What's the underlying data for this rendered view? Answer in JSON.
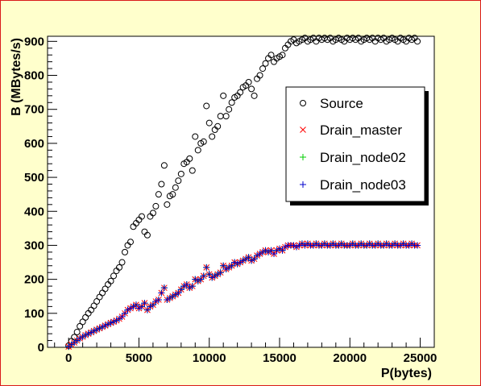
{
  "chart_data": {
    "type": "scatter",
    "xlabel": "P(bytes)",
    "ylabel": "B (MBytes/s)",
    "xlim": [
      -1500,
      26000
    ],
    "ylim": [
      0,
      915
    ],
    "xticks": [
      0,
      5000,
      10000,
      15000,
      20000,
      25000
    ],
    "yticks": [
      0,
      100,
      200,
      300,
      400,
      500,
      600,
      700,
      800,
      900
    ],
    "grid": false,
    "legend_position": "right",
    "colors": {
      "source": "#000000",
      "drain_master": "#ff0000",
      "drain_node02": "#00cc00",
      "drain_node03": "#0000cc",
      "background": "#ffffcc",
      "plot": "#ffffff",
      "frame": "#d91a1a"
    },
    "series": [
      {
        "name": "Source",
        "marker": "circle",
        "color": "#000000",
        "x": [
          0,
          200,
          400,
          600,
          800,
          1000,
          1200,
          1400,
          1600,
          1800,
          2000,
          2200,
          2400,
          2600,
          2800,
          3000,
          3200,
          3400,
          3600,
          3800,
          4000,
          4200,
          4400,
          4600,
          4800,
          5000,
          5200,
          5400,
          5600,
          5800,
          6000,
          6200,
          6400,
          6600,
          6800,
          7000,
          7200,
          7400,
          7600,
          7800,
          8000,
          8200,
          8400,
          8600,
          8800,
          9000,
          9200,
          9400,
          9600,
          9800,
          10000,
          10200,
          10400,
          10600,
          10800,
          11000,
          11200,
          11400,
          11600,
          11800,
          12000,
          12200,
          12400,
          12600,
          12800,
          13000,
          13200,
          13400,
          13600,
          13800,
          14000,
          14200,
          14400,
          14600,
          14800,
          15000,
          15200,
          15400,
          15600,
          15800,
          16000,
          16200,
          16400,
          16600,
          16800,
          17000,
          17200,
          17400,
          17600,
          17800,
          18000,
          18200,
          18400,
          18600,
          18800,
          19000,
          19200,
          19400,
          19600,
          19800,
          20000,
          20200,
          20400,
          20600,
          20800,
          21000,
          21200,
          21400,
          21600,
          21800,
          22000,
          22200,
          22400,
          22600,
          22800,
          23000,
          23200,
          23400,
          23600,
          23800,
          24000,
          24200,
          24400,
          24600,
          24800
        ],
        "y": [
          5,
          18,
          30,
          45,
          62,
          75,
          88,
          100,
          110,
          122,
          135,
          148,
          160,
          172,
          185,
          195,
          210,
          225,
          235,
          250,
          280,
          300,
          310,
          355,
          365,
          375,
          385,
          340,
          330,
          385,
          395,
          415,
          450,
          480,
          535,
          420,
          445,
          450,
          470,
          490,
          510,
          540,
          545,
          555,
          520,
          620,
          580,
          600,
          605,
          710,
          660,
          620,
          640,
          650,
          680,
          740,
          680,
          700,
          720,
          735,
          740,
          750,
          765,
          770,
          780,
          760,
          740,
          790,
          800,
          820,
          835,
          850,
          860,
          840,
          850,
          855,
          860,
          880,
          890,
          900,
          905,
          895,
          900,
          905,
          910,
          900,
          905,
          910,
          900,
          910,
          905,
          910,
          905,
          910,
          900,
          905,
          910,
          905,
          900,
          910,
          905,
          910,
          905,
          910,
          900,
          905,
          910,
          905,
          910,
          900,
          910,
          905,
          910,
          900,
          905,
          910,
          905,
          900,
          910,
          905,
          900,
          910,
          905,
          910,
          900
        ]
      },
      {
        "name": "Drain_master",
        "marker": "x",
        "color": "#ff0000",
        "x": [
          0,
          200,
          400,
          600,
          800,
          1000,
          1200,
          1400,
          1600,
          1800,
          2000,
          2200,
          2400,
          2600,
          2800,
          3000,
          3200,
          3400,
          3600,
          3800,
          4000,
          4200,
          4400,
          4600,
          4800,
          5000,
          5200,
          5400,
          5600,
          5800,
          6000,
          6200,
          6400,
          6600,
          6800,
          7000,
          7200,
          7400,
          7600,
          7800,
          8000,
          8200,
          8400,
          8600,
          8800,
          9000,
          9200,
          9400,
          9600,
          9800,
          10000,
          10200,
          10400,
          10600,
          10800,
          11000,
          11200,
          11400,
          11600,
          11800,
          12000,
          12200,
          12400,
          12600,
          12800,
          13000,
          13200,
          13400,
          13600,
          13800,
          14000,
          14200,
          14400,
          14600,
          14800,
          15000,
          15200,
          15400,
          15600,
          15800,
          16000,
          16200,
          16400,
          16600,
          16800,
          17000,
          17200,
          17400,
          17600,
          17800,
          18000,
          18200,
          18400,
          18600,
          18800,
          19000,
          19200,
          19400,
          19600,
          19800,
          20000,
          20200,
          20400,
          20600,
          20800,
          21000,
          21200,
          21400,
          21600,
          21800,
          22000,
          22200,
          22400,
          22600,
          22800,
          23000,
          23200,
          23400,
          23600,
          23800,
          24000,
          24200,
          24400,
          24600,
          24800
        ],
        "y": [
          2,
          8,
          14,
          20,
          26,
          31,
          36,
          40,
          44,
          48,
          52,
          56,
          60,
          64,
          68,
          72,
          75,
          79,
          84,
          90,
          100,
          110,
          115,
          120,
          125,
          115,
          120,
          130,
          110,
          120,
          125,
          135,
          140,
          160,
          175,
          140,
          145,
          150,
          155,
          160,
          170,
          180,
          185,
          175,
          180,
          200,
          195,
          200,
          210,
          235,
          215,
          205,
          210,
          215,
          220,
          240,
          230,
          235,
          240,
          250,
          245,
          250,
          255,
          260,
          265,
          255,
          260,
          270,
          275,
          280,
          285,
          280,
          285,
          275,
          285,
          290,
          285,
          295,
          300,
          300,
          300,
          295,
          300,
          305,
          300,
          305,
          300,
          300,
          305,
          300,
          300,
          305,
          300,
          300,
          305,
          300,
          300,
          305,
          300,
          300,
          300,
          305,
          300,
          300,
          305,
          300,
          300,
          305,
          300,
          300,
          305,
          300,
          300,
          305,
          300,
          300,
          305,
          300,
          300,
          305,
          300,
          300,
          305,
          300,
          300
        ]
      },
      {
        "name": "Drain_node02",
        "marker": "plus",
        "color": "#00cc00",
        "x": [
          0,
          200,
          400,
          600,
          800,
          1000,
          1200,
          1400,
          1600,
          1800,
          2000,
          2200,
          2400,
          2600,
          2800,
          3000,
          3200,
          3400,
          3600,
          3800,
          4000,
          4200,
          4400,
          4600,
          4800,
          5000,
          5200,
          5400,
          5600,
          5800,
          6000,
          6200,
          6400,
          6600,
          6800,
          7000,
          7200,
          7400,
          7600,
          7800,
          8000,
          8200,
          8400,
          8600,
          8800,
          9000,
          9200,
          9400,
          9600,
          9800,
          10000,
          10200,
          10400,
          10600,
          10800,
          11000,
          11200,
          11400,
          11600,
          11800,
          12000,
          12200,
          12400,
          12600,
          12800,
          13000,
          13200,
          13400,
          13600,
          13800,
          14000,
          14200,
          14400,
          14600,
          14800,
          15000,
          15200,
          15400,
          15600,
          15800,
          16000,
          16200,
          16400,
          16600,
          16800,
          17000,
          17200,
          17400,
          17600,
          17800,
          18000,
          18200,
          18400,
          18600,
          18800,
          19000,
          19200,
          19400,
          19600,
          19800,
          20000,
          20200,
          20400,
          20600,
          20800,
          21000,
          21200,
          21400,
          21600,
          21800,
          22000,
          22200,
          22400,
          22600,
          22800,
          23000,
          23200,
          23400,
          23600,
          23800,
          24000,
          24200,
          24400,
          24600,
          24800
        ],
        "y": [
          2,
          8,
          14,
          20,
          26,
          31,
          36,
          40,
          44,
          48,
          52,
          56,
          60,
          64,
          68,
          72,
          75,
          79,
          84,
          90,
          100,
          110,
          115,
          120,
          125,
          115,
          120,
          130,
          110,
          120,
          125,
          135,
          140,
          160,
          175,
          140,
          145,
          150,
          155,
          160,
          170,
          180,
          185,
          175,
          180,
          200,
          195,
          200,
          210,
          235,
          215,
          205,
          210,
          215,
          220,
          240,
          230,
          235,
          240,
          250,
          245,
          250,
          255,
          260,
          265,
          255,
          260,
          270,
          275,
          280,
          285,
          280,
          285,
          275,
          285,
          290,
          285,
          295,
          300,
          300,
          300,
          295,
          300,
          305,
          300,
          305,
          300,
          300,
          305,
          300,
          300,
          305,
          300,
          300,
          305,
          300,
          300,
          305,
          300,
          300,
          300,
          305,
          300,
          300,
          305,
          300,
          300,
          305,
          300,
          300,
          305,
          300,
          300,
          305,
          300,
          300,
          305,
          300,
          300,
          305,
          300,
          300,
          305,
          300,
          300
        ]
      },
      {
        "name": "Drain_node03",
        "marker": "plus",
        "color": "#0000cc",
        "x": [
          0,
          200,
          400,
          600,
          800,
          1000,
          1200,
          1400,
          1600,
          1800,
          2000,
          2200,
          2400,
          2600,
          2800,
          3000,
          3200,
          3400,
          3600,
          3800,
          4000,
          4200,
          4400,
          4600,
          4800,
          5000,
          5200,
          5400,
          5600,
          5800,
          6000,
          6200,
          6400,
          6600,
          6800,
          7000,
          7200,
          7400,
          7600,
          7800,
          8000,
          8200,
          8400,
          8600,
          8800,
          9000,
          9200,
          9400,
          9600,
          9800,
          10000,
          10200,
          10400,
          10600,
          10800,
          11000,
          11200,
          11400,
          11600,
          11800,
          12000,
          12200,
          12400,
          12600,
          12800,
          13000,
          13200,
          13400,
          13600,
          13800,
          14000,
          14200,
          14400,
          14600,
          14800,
          15000,
          15200,
          15400,
          15600,
          15800,
          16000,
          16200,
          16400,
          16600,
          16800,
          17000,
          17200,
          17400,
          17600,
          17800,
          18000,
          18200,
          18400,
          18600,
          18800,
          19000,
          19200,
          19400,
          19600,
          19800,
          20000,
          20200,
          20400,
          20600,
          20800,
          21000,
          21200,
          21400,
          21600,
          21800,
          22000,
          22200,
          22400,
          22600,
          22800,
          23000,
          23200,
          23400,
          23600,
          23800,
          24000,
          24200,
          24400,
          24600,
          24800
        ],
        "y": [
          2,
          8,
          14,
          20,
          26,
          31,
          36,
          40,
          44,
          48,
          52,
          56,
          60,
          64,
          68,
          72,
          75,
          79,
          84,
          90,
          100,
          110,
          115,
          120,
          125,
          115,
          120,
          130,
          110,
          120,
          125,
          135,
          140,
          160,
          175,
          140,
          145,
          150,
          155,
          160,
          170,
          180,
          185,
          175,
          180,
          200,
          195,
          200,
          210,
          235,
          215,
          205,
          210,
          215,
          220,
          240,
          230,
          235,
          240,
          250,
          245,
          250,
          255,
          260,
          265,
          255,
          260,
          270,
          275,
          280,
          285,
          280,
          285,
          275,
          285,
          290,
          285,
          295,
          300,
          300,
          300,
          295,
          300,
          305,
          300,
          305,
          300,
          300,
          305,
          300,
          300,
          305,
          300,
          300,
          305,
          300,
          300,
          305,
          300,
          300,
          300,
          305,
          300,
          300,
          305,
          300,
          300,
          305,
          300,
          300,
          305,
          300,
          300,
          305,
          300,
          300,
          305,
          300,
          300,
          305,
          300,
          300,
          305,
          300,
          300
        ]
      }
    ]
  }
}
